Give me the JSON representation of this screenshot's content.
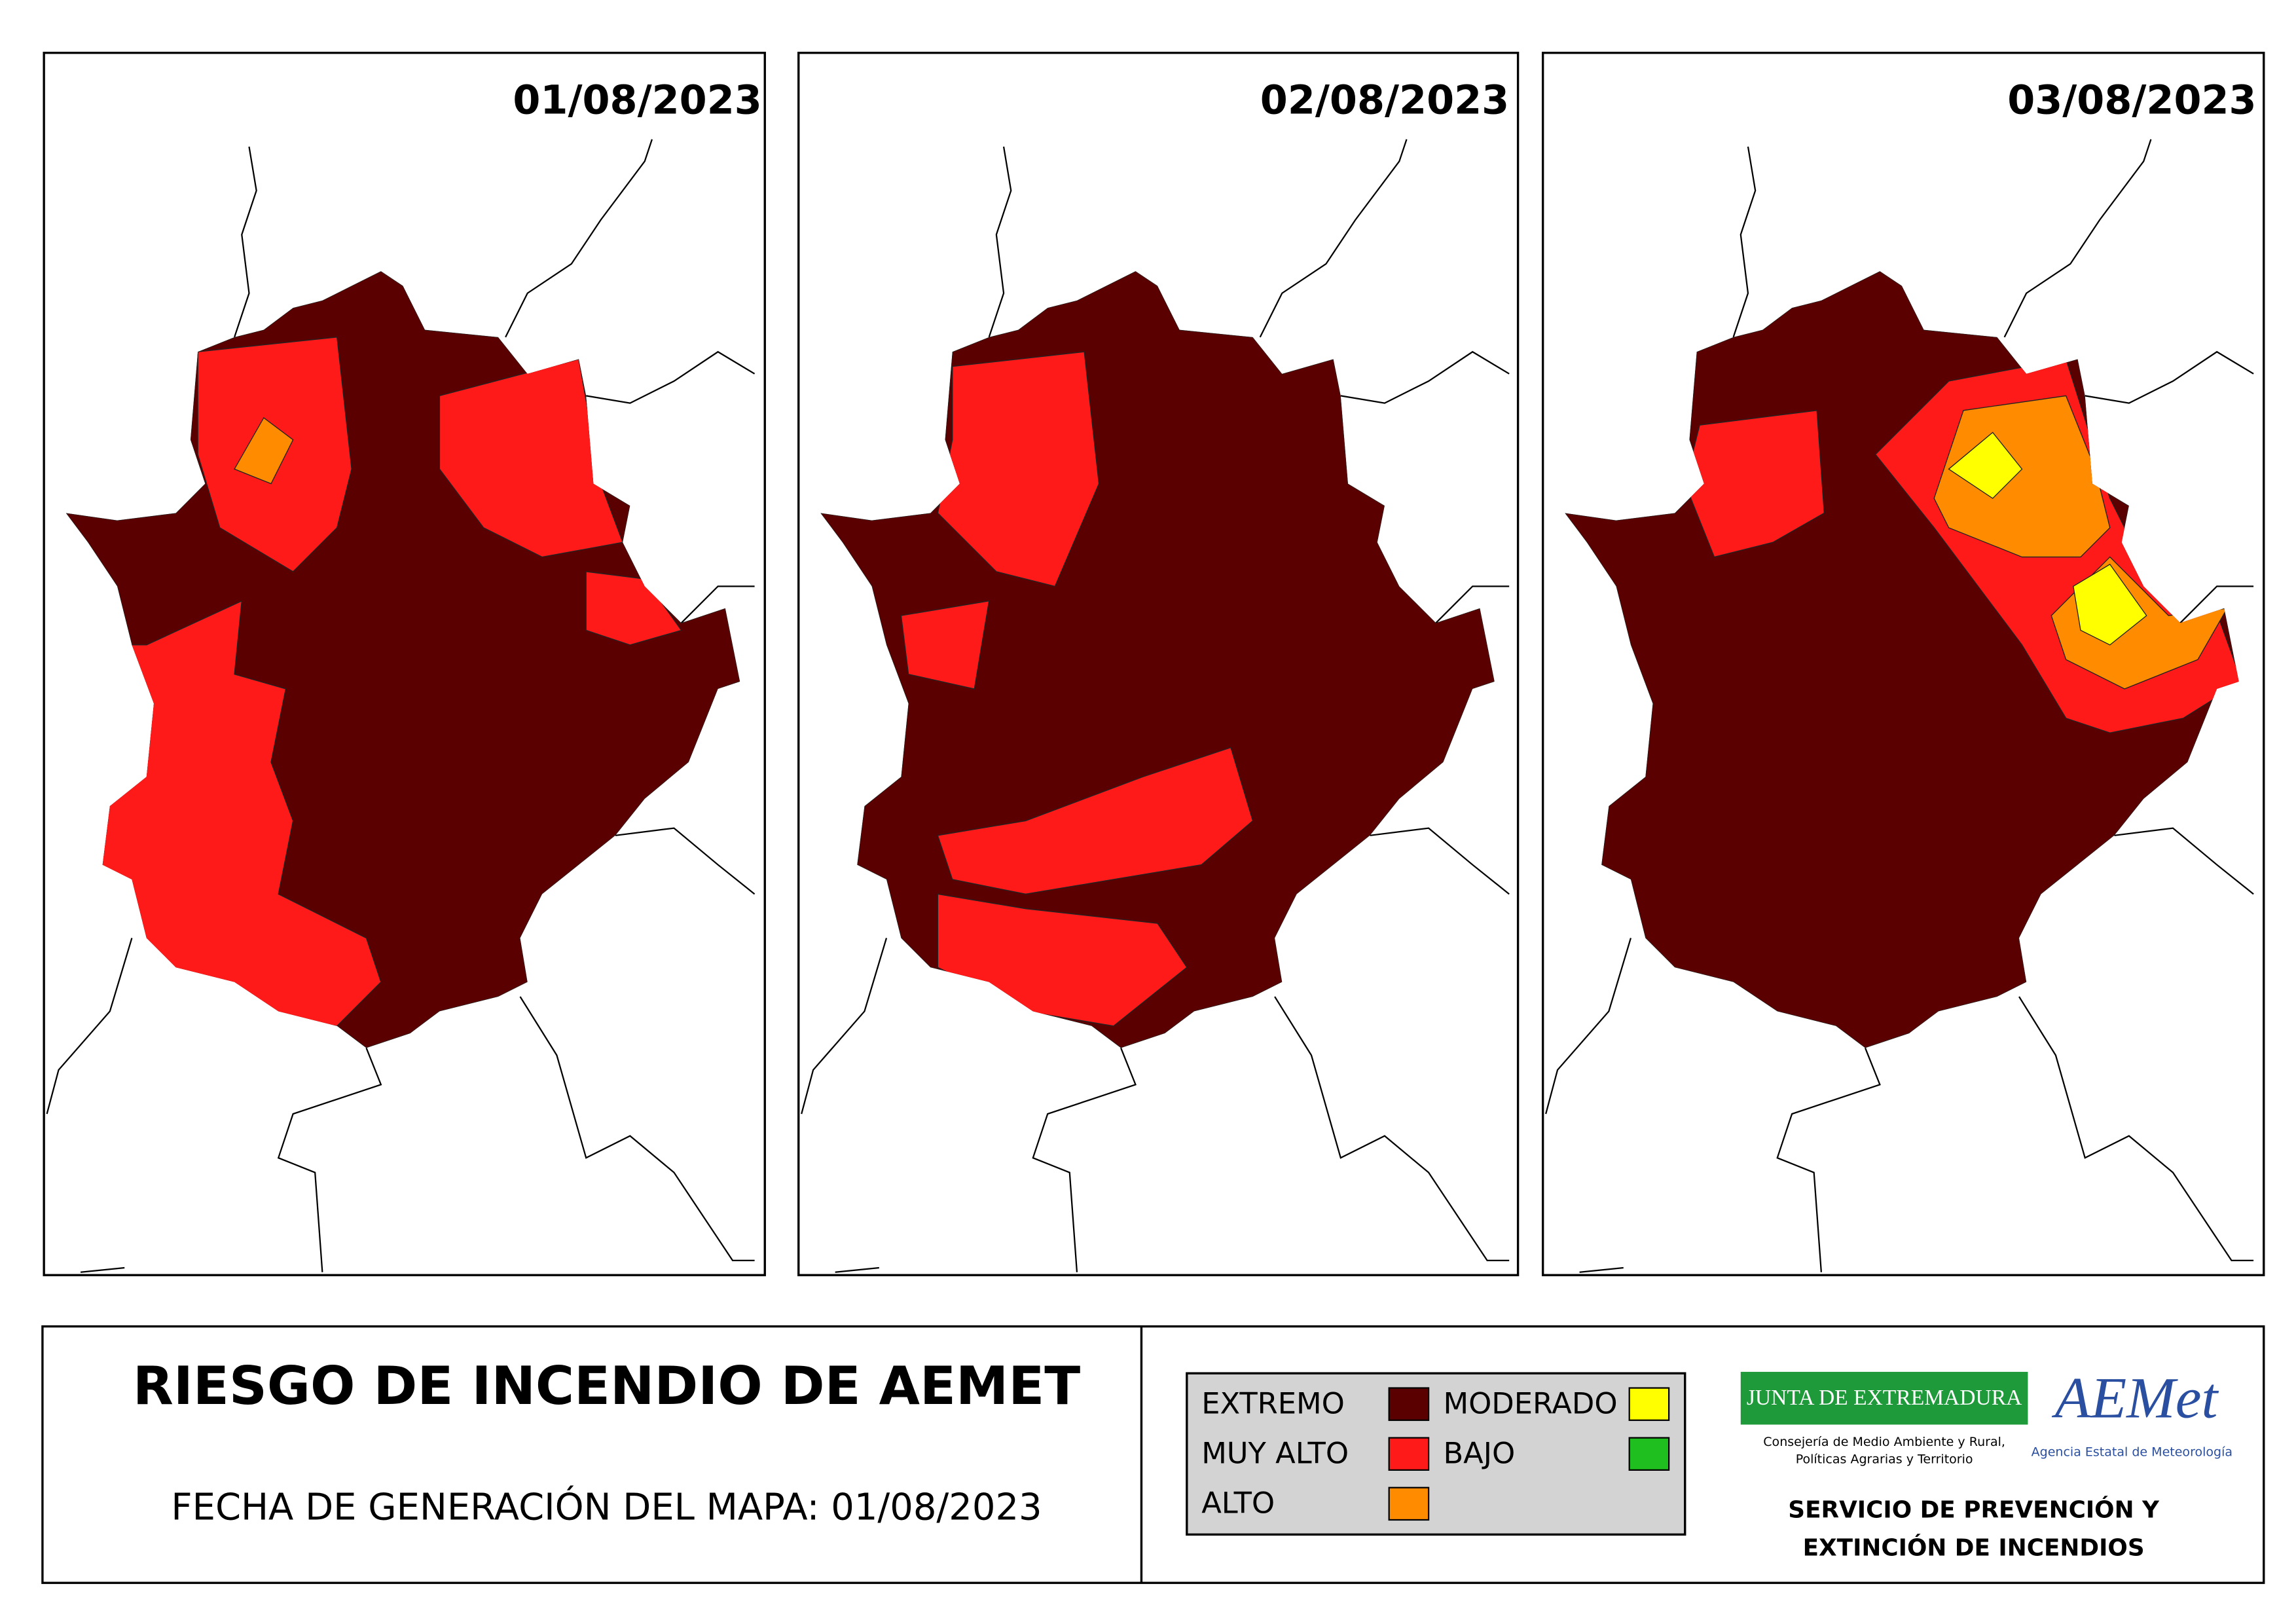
{
  "panels": [
    {
      "date": "01/08/2023"
    },
    {
      "date": "02/08/2023"
    },
    {
      "date": "03/08/2023"
    }
  ],
  "title": "RIESGO DE INCENDIO DE AEMET",
  "subtitle": "FECHA DE GENERACIÓN DEL MAPA: 01/08/2023",
  "legend": [
    {
      "label": "EXTREMO",
      "color": "#5a0000"
    },
    {
      "label": "MUY ALTO",
      "color": "#ff1a1a"
    },
    {
      "label": "ALTO",
      "color": "#ff8c00"
    },
    {
      "label": "MODERADO",
      "color": "#ffff00"
    },
    {
      "label": "BAJO",
      "color": "#1fbf1f"
    }
  ],
  "logos": {
    "junta": "JUNTA DE EXTREMADURA",
    "junta_sub": [
      "Consejería de Medio Ambiente y Rural,",
      "Políticas Agrarias y Territorio"
    ],
    "aemet": "AEMet",
    "aemet_sub": "Agencia Estatal de Meteorología"
  },
  "service": [
    "SERVICIO DE PREVENCIÓN Y",
    "EXTINCIÓN DE INCENDIOS"
  ]
}
